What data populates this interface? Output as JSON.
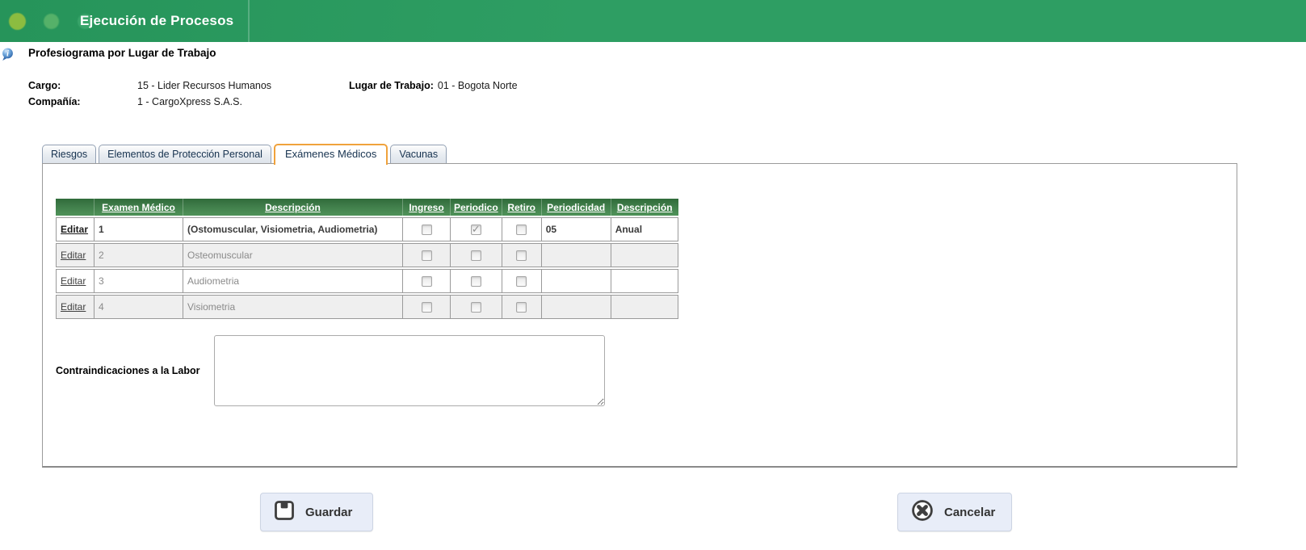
{
  "colors": {
    "topbar_green": "#2e9e63",
    "topbar_green_dark": "#26945a",
    "table_header_green_top": "#2f6b3a",
    "table_header_green_bottom": "#4f9359",
    "active_tab_orange": "#f0a23c",
    "button_bg": "#e8edf8",
    "dot_yellow_green": "#8cbc40",
    "dot_light_green": "#55b169",
    "dot_faint_green": "#3aa56b"
  },
  "topbar": {
    "title": "Ejecución de Procesos"
  },
  "page": {
    "title": "Profesiograma por Lugar de Trabajo"
  },
  "fields": {
    "cargo_label": "Cargo:",
    "cargo_value": "15 - Lider Recursos Humanos",
    "lugar_label": "Lugar de Trabajo:",
    "lugar_value": "01 - Bogota Norte",
    "compania_label": "Compañía:",
    "compania_value": "1 - CargoXpress S.A.S."
  },
  "tabs": [
    {
      "id": "riesgos",
      "label": "Riesgos",
      "active": false
    },
    {
      "id": "elementos-de-proteccion-personal",
      "label": "Elementos de Protección Personal",
      "active": false
    },
    {
      "id": "examenes-medicos",
      "label": "Exámenes Médicos",
      "active": true
    },
    {
      "id": "vacunas",
      "label": "Vacunas",
      "active": false
    }
  ],
  "table": {
    "edit_label": "Editar",
    "headers": [
      {
        "id": "edit",
        "label": ""
      },
      {
        "id": "examen-medico",
        "label": "Examen Médico"
      },
      {
        "id": "descripcion",
        "label": "Descripción"
      },
      {
        "id": "ingreso",
        "label": "Ingreso"
      },
      {
        "id": "periodico",
        "label": "Periodico"
      },
      {
        "id": "retiro",
        "label": "Retiro"
      },
      {
        "id": "periodicidad",
        "label": "Periodicidad"
      },
      {
        "id": "descripcion-2",
        "label": "Descripción"
      }
    ],
    "rows": [
      {
        "examen_medico": "1",
        "descripcion": "(Ostomuscular, Visiometria, Audiometria)",
        "ingreso": false,
        "periodico": true,
        "retiro": false,
        "periodicidad": "05",
        "descripcion_2": "Anual",
        "emphasis": true
      },
      {
        "examen_medico": "2",
        "descripcion": "Osteomuscular",
        "ingreso": false,
        "periodico": false,
        "retiro": false,
        "periodicidad": "",
        "descripcion_2": "",
        "emphasis": false
      },
      {
        "examen_medico": "3",
        "descripcion": "Audiometria",
        "ingreso": false,
        "periodico": false,
        "retiro": false,
        "periodicidad": "",
        "descripcion_2": "",
        "emphasis": false
      },
      {
        "examen_medico": "4",
        "descripcion": "Visiometria",
        "ingreso": false,
        "periodico": false,
        "retiro": false,
        "periodicidad": "",
        "descripcion_2": "",
        "emphasis": false
      }
    ]
  },
  "contraindicaciones": {
    "label": "Contraindicaciones a la Labor",
    "value": ""
  },
  "actions": {
    "guardar_label": "Guardar",
    "cancelar_label": "Cancelar"
  }
}
